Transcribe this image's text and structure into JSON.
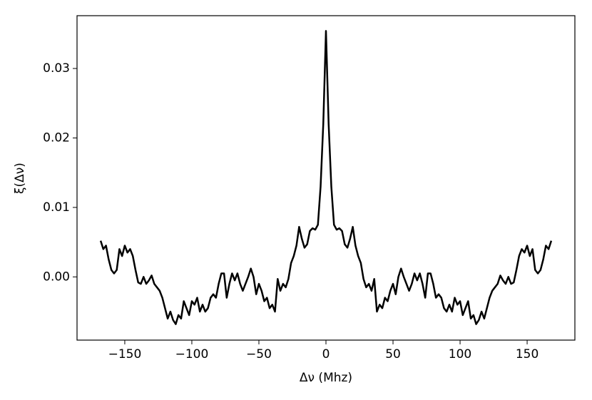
{
  "chart_data": {
    "type": "line",
    "xlabel": "Δν (Mhz)",
    "ylabel": "ξ(Δν)",
    "x": [
      -168,
      -166,
      -164,
      -162,
      -160,
      -158,
      -156,
      -154,
      -152,
      -150,
      -148,
      -146,
      -144,
      -142,
      -140,
      -138,
      -136,
      -134,
      -132,
      -130,
      -128,
      -126,
      -124,
      -122,
      -120,
      -118,
      -116,
      -114,
      -112,
      -110,
      -108,
      -106,
      -104,
      -102,
      -100,
      -98,
      -96,
      -94,
      -92,
      -90,
      -88,
      -86,
      -84,
      -82,
      -80,
      -78,
      -76,
      -74,
      -72,
      -70,
      -68,
      -66,
      -64,
      -62,
      -60,
      -58,
      -56,
      -54,
      -52,
      -50,
      -48,
      -46,
      -44,
      -42,
      -40,
      -38,
      -36,
      -34,
      -32,
      -30,
      -28,
      -26,
      -24,
      -22,
      -20,
      -18,
      -16,
      -14,
      -12,
      -10,
      -8,
      -6,
      -4,
      -2,
      0,
      2,
      4,
      6,
      8,
      10,
      12,
      14,
      16,
      18,
      20,
      22,
      24,
      26,
      28,
      30,
      32,
      34,
      36,
      38,
      40,
      42,
      44,
      46,
      48,
      50,
      52,
      54,
      56,
      58,
      60,
      62,
      64,
      66,
      68,
      70,
      72,
      74,
      76,
      78,
      80,
      82,
      84,
      86,
      88,
      90,
      92,
      94,
      96,
      98,
      100,
      102,
      104,
      106,
      108,
      110,
      112,
      114,
      116,
      118,
      120,
      122,
      124,
      126,
      128,
      130,
      132,
      134,
      136,
      138,
      140,
      142,
      144,
      146,
      148,
      150,
      152,
      154,
      156,
      158,
      160,
      162,
      164,
      166,
      168
    ],
    "series": [
      {
        "color": "#000000",
        "values": [
          0.0052,
          0.004,
          0.0045,
          0.0025,
          0.001,
          0.0005,
          0.001,
          0.004,
          0.003,
          0.0045,
          0.0035,
          0.004,
          0.003,
          0.001,
          -0.0008,
          -0.001,
          0.0,
          -0.001,
          -0.0005,
          0.0002,
          -0.001,
          -0.0015,
          -0.002,
          -0.003,
          -0.0045,
          -0.006,
          -0.005,
          -0.0062,
          -0.0068,
          -0.0055,
          -0.006,
          -0.0035,
          -0.0045,
          -0.0055,
          -0.0035,
          -0.004,
          -0.003,
          -0.005,
          -0.004,
          -0.005,
          -0.0045,
          -0.003,
          -0.0025,
          -0.003,
          -0.001,
          0.0005,
          0.0005,
          -0.003,
          -0.001,
          0.0005,
          -0.0005,
          0.0005,
          -0.001,
          -0.002,
          -0.001,
          0.0,
          0.0012,
          0.0,
          -0.0025,
          -0.001,
          -0.002,
          -0.0035,
          -0.003,
          -0.0045,
          -0.004,
          -0.005,
          -0.0003,
          -0.002,
          -0.001,
          -0.0015,
          -0.0003,
          0.002,
          0.003,
          0.0045,
          0.0072,
          0.0055,
          0.0042,
          0.0047,
          0.0066,
          0.007,
          0.0068,
          0.0075,
          0.013,
          0.022,
          0.0354,
          0.022,
          0.013,
          0.0075,
          0.0068,
          0.007,
          0.0066,
          0.0047,
          0.0042,
          0.0055,
          0.0072,
          0.0045,
          0.003,
          0.002,
          -0.0003,
          -0.0015,
          -0.001,
          -0.002,
          -0.0003,
          -0.005,
          -0.004,
          -0.0045,
          -0.003,
          -0.0035,
          -0.002,
          -0.001,
          -0.0025,
          0.0,
          0.0012,
          0.0,
          -0.001,
          -0.002,
          -0.001,
          0.0005,
          -0.0005,
          0.0005,
          -0.001,
          -0.003,
          0.0005,
          0.0005,
          -0.001,
          -0.003,
          -0.0025,
          -0.003,
          -0.0045,
          -0.005,
          -0.004,
          -0.005,
          -0.003,
          -0.004,
          -0.0035,
          -0.0055,
          -0.0045,
          -0.0035,
          -0.006,
          -0.0055,
          -0.0068,
          -0.0062,
          -0.005,
          -0.006,
          -0.0045,
          -0.003,
          -0.002,
          -0.0015,
          -0.001,
          0.0002,
          -0.0005,
          -0.001,
          0.0,
          -0.001,
          -0.0008,
          0.001,
          0.003,
          0.004,
          0.0035,
          0.0045,
          0.003,
          0.004,
          0.001,
          0.0005,
          0.001,
          0.0025,
          0.0045,
          0.004,
          0.0052
        ]
      }
    ],
    "xlim": [
      -185.6,
      185.6
    ],
    "xticks": [
      {
        "value": -150,
        "label": "−150"
      },
      {
        "value": -100,
        "label": "−100"
      },
      {
        "value": -50,
        "label": "−50"
      },
      0,
      50,
      100,
      150
    ],
    "ylim": [
      -0.0091,
      0.0376
    ],
    "yticks": [
      {
        "value": 0,
        "label": "0.00"
      },
      0.01,
      0.02,
      0.03
    ],
    "grid": false
  }
}
